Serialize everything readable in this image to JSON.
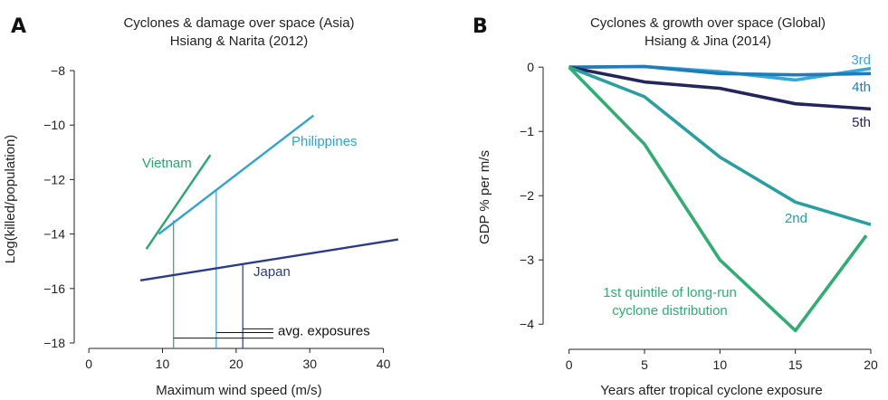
{
  "chart_data": [
    {
      "panel": "A",
      "type": "line",
      "title": "Cyclones & damage over space (Asia)",
      "subtitle": "Hsiang & Narita (2012)",
      "xlabel": "Maximum wind speed (m/s)",
      "ylabel": "Log(killed/population)",
      "xlim": [
        -1,
        43
      ],
      "ylim": [
        -18.2,
        -7.6
      ],
      "xticks": [
        0,
        10,
        20,
        30,
        40
      ],
      "yticks": [
        -8,
        -10,
        -12,
        -14,
        -16,
        -18
      ],
      "grid": false,
      "legend": "none",
      "series": [
        {
          "name": "Vietnam",
          "color": "#27a96c",
          "x": [
            7.8,
            16.5
          ],
          "y": [
            -14.55,
            -11.1
          ]
        },
        {
          "name": "Philippines",
          "color": "#2ea3d8",
          "x": [
            9.5,
            30.5
          ],
          "y": [
            -14.0,
            -9.65
          ]
        },
        {
          "name": "Japan",
          "color": "#2b3a8c",
          "x": [
            7.0,
            42.0
          ],
          "y": [
            -15.7,
            -14.2
          ]
        }
      ],
      "exposures": [
        {
          "x": 11.5,
          "color": "#27a96c",
          "y_top": -13.5
        },
        {
          "x": 17.3,
          "color": "#2ea3d8",
          "y_top": -12.4
        },
        {
          "x": 20.9,
          "color": "#2b3a8c",
          "y_top": -15.1
        }
      ],
      "exposure_label": "avg. exposures"
    },
    {
      "panel": "B",
      "type": "line",
      "title": "Cyclones & growth over space (Global)",
      "subtitle": "Hsiang & Jina (2014)",
      "xlabel": "Years after tropical cyclone exposure",
      "ylabel": "GDP % per m/s",
      "xlim": [
        -1,
        20
      ],
      "ylim": [
        -4.25,
        0.2
      ],
      "xticks": [
        0,
        5,
        10,
        15,
        20
      ],
      "yticks": [
        0,
        -1,
        -2,
        -3,
        -4
      ],
      "grid": false,
      "legend": "none",
      "series": [
        {
          "name": "3rd",
          "color": "#35a7dc",
          "x": [
            0,
            5,
            10,
            15,
            20
          ],
          "y": [
            0,
            0.01,
            -0.07,
            -0.2,
            -0.02
          ]
        },
        {
          "name": "4th",
          "color": "#1f7cb8",
          "x": [
            0,
            5,
            10,
            15,
            20
          ],
          "y": [
            0,
            0.01,
            -0.1,
            -0.12,
            -0.1
          ]
        },
        {
          "name": "5th",
          "color": "#24245e",
          "x": [
            0,
            5,
            10,
            15,
            20
          ],
          "y": [
            0,
            -0.23,
            -0.33,
            -0.57,
            -0.65
          ]
        },
        {
          "name": "2nd",
          "color": "#2a9fa0",
          "x": [
            0,
            5,
            10,
            15,
            20
          ],
          "y": [
            0,
            -0.46,
            -1.4,
            -2.1,
            -2.45
          ]
        },
        {
          "name": "1st quintile of long-run cyclone distribution",
          "color": "#2fae74",
          "x": [
            0,
            5,
            10,
            15,
            19.7
          ],
          "y": [
            0,
            -1.2,
            -3.0,
            -4.1,
            -2.62
          ]
        }
      ]
    }
  ]
}
